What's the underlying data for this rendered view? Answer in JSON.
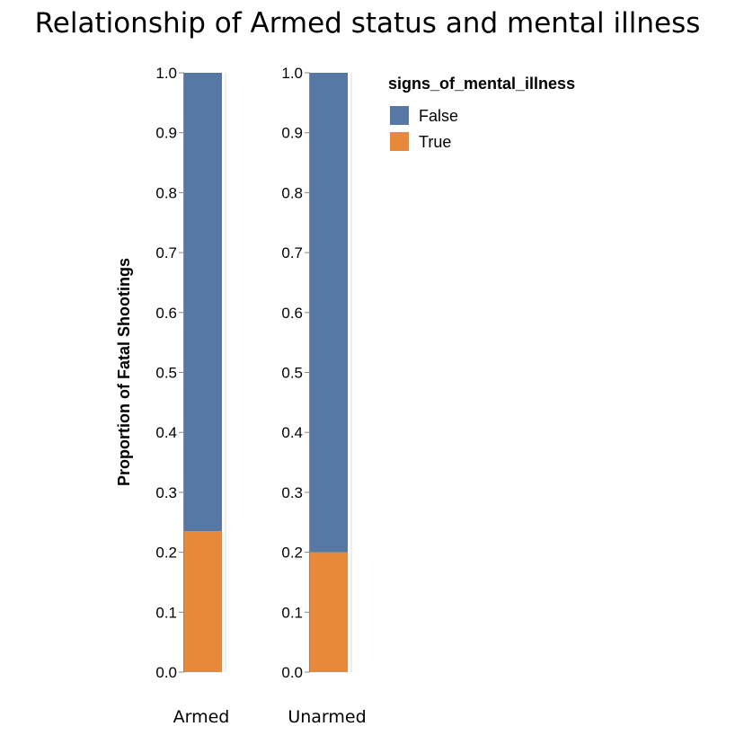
{
  "chart_data": {
    "type": "bar",
    "stacked": true,
    "title": "Relationship of Armed status and mental illness",
    "ylabel": "Proportion of Fatal Shootings",
    "xlabel": "",
    "categories": [
      "Armed",
      "Unarmed"
    ],
    "ylim": [
      0,
      1
    ],
    "yticks": [
      "0.0",
      "0.1",
      "0.2",
      "0.3",
      "0.4",
      "0.5",
      "0.6",
      "0.7",
      "0.8",
      "0.9",
      "1.0"
    ],
    "legend": {
      "title": "signs_of_mental_illness",
      "position": "right"
    },
    "series": [
      {
        "name": "True",
        "color": "#e8893a",
        "values": [
          0.235,
          0.2
        ]
      },
      {
        "name": "False",
        "color": "#5778a4",
        "values": [
          0.765,
          0.8
        ]
      }
    ],
    "legend_order": [
      "False",
      "True"
    ]
  }
}
